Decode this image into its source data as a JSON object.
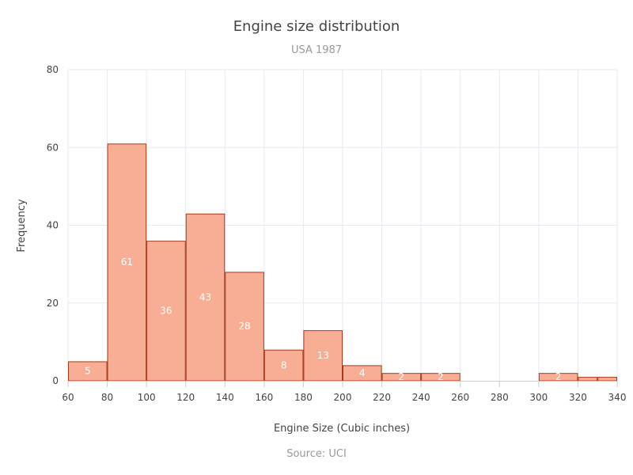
{
  "chart_data": {
    "type": "bar",
    "subtype": "histogram",
    "title": "Engine size distribution",
    "subtitle": "USA 1987",
    "xlabel": "Engine Size (Cubic inches)",
    "ylabel": "Frequency",
    "source": "Source: UCI",
    "xlim": [
      60,
      340
    ],
    "ylim": [
      0,
      80
    ],
    "x_ticks": [
      60,
      80,
      100,
      120,
      140,
      160,
      180,
      200,
      220,
      240,
      260,
      280,
      300,
      320,
      340
    ],
    "y_ticks": [
      0,
      20,
      40,
      60,
      80
    ],
    "grid": true,
    "bins": [
      {
        "from": 60,
        "to": 80,
        "value": 5
      },
      {
        "from": 80,
        "to": 100,
        "value": 61
      },
      {
        "from": 100,
        "to": 120,
        "value": 36
      },
      {
        "from": 120,
        "to": 140,
        "value": 43
      },
      {
        "from": 140,
        "to": 160,
        "value": 28
      },
      {
        "from": 160,
        "to": 180,
        "value": 8
      },
      {
        "from": 180,
        "to": 200,
        "value": 13
      },
      {
        "from": 200,
        "to": 220,
        "value": 4
      },
      {
        "from": 220,
        "to": 240,
        "value": 2
      },
      {
        "from": 240,
        "to": 260,
        "value": 2
      },
      {
        "from": 300,
        "to": 320,
        "value": 2
      },
      {
        "from": 320,
        "to": 330,
        "value": 1
      },
      {
        "from": 330,
        "to": 340,
        "value": 1
      }
    ],
    "data_labels": [
      {
        "bin": 0,
        "text": "5"
      },
      {
        "bin": 1,
        "text": "61"
      },
      {
        "bin": 2,
        "text": "36"
      },
      {
        "bin": 3,
        "text": "43"
      },
      {
        "bin": 4,
        "text": "28"
      },
      {
        "bin": 5,
        "text": "8"
      },
      {
        "bin": 6,
        "text": "13"
      },
      {
        "bin": 7,
        "text": "4"
      },
      {
        "bin": 8,
        "text": "2"
      },
      {
        "bin": 9,
        "text": "2"
      },
      {
        "bin": 10,
        "text": "2"
      }
    ],
    "colors": {
      "bar_fill": "#f7ae94",
      "bar_stroke": "#a8391a",
      "label": "#ffffff"
    }
  }
}
